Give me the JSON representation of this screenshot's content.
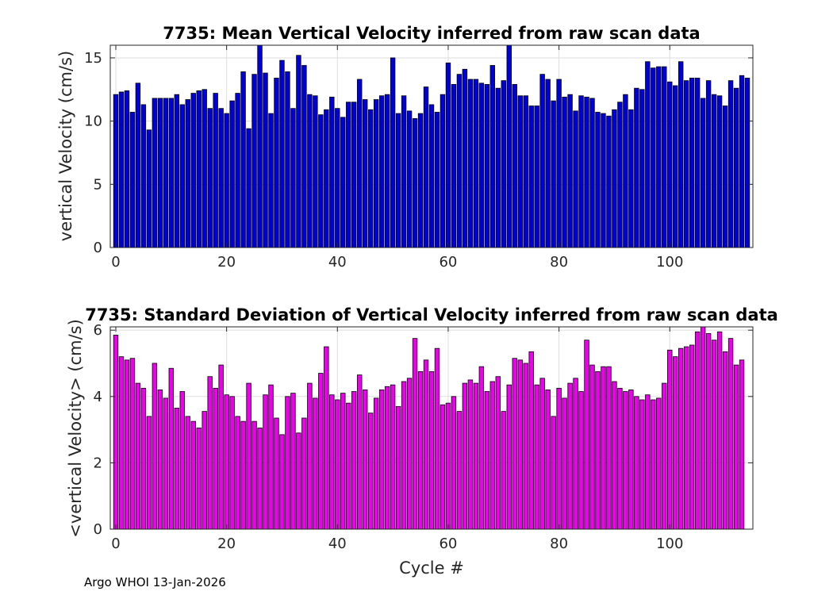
{
  "footer": "Argo WHOI 13-Jan-2026",
  "colors": {
    "mean_bar": "#0000dd",
    "std_bar": "#ee00ee",
    "bar_edge": "#000000",
    "grid": "#dddddd",
    "axis": "#262626"
  },
  "chart_data": [
    {
      "type": "bar",
      "title": "7735: Mean Vertical Velocity inferred from raw scan data",
      "xlabel": "",
      "ylabel": "vertical Velocity (cm/s)",
      "xlim": [
        -1,
        115
      ],
      "ylim": [
        0,
        16
      ],
      "xticks": [
        0,
        20,
        40,
        60,
        80,
        100
      ],
      "yticks": [
        0,
        5,
        10,
        15
      ],
      "grid": true,
      "x_start": 0,
      "values": [
        12.1,
        12.3,
        12.4,
        10.7,
        13.0,
        11.3,
        9.3,
        11.8,
        11.8,
        11.8,
        11.8,
        12.1,
        11.3,
        11.7,
        12.2,
        12.4,
        12.5,
        11.0,
        12.2,
        11.0,
        10.6,
        11.6,
        12.2,
        13.9,
        9.4,
        13.7,
        16.0,
        13.8,
        10.6,
        13.4,
        14.8,
        13.9,
        11.0,
        15.2,
        14.4,
        12.1,
        12.0,
        10.5,
        10.9,
        11.9,
        11.0,
        10.3,
        11.5,
        11.5,
        13.3,
        11.7,
        10.9,
        11.7,
        12.0,
        12.1,
        15.0,
        10.6,
        12.0,
        10.8,
        10.2,
        10.6,
        12.7,
        11.3,
        10.7,
        12.1,
        14.6,
        12.9,
        13.7,
        14.1,
        13.3,
        13.3,
        13.0,
        12.9,
        14.4,
        12.6,
        13.2,
        16.0,
        12.9,
        12.0,
        12.0,
        11.2,
        11.2,
        13.7,
        13.3,
        11.6,
        13.3,
        11.9,
        12.1,
        10.8,
        12.0,
        11.9,
        11.8,
        10.7,
        10.6,
        10.4,
        10.9,
        11.5,
        12.1,
        10.9,
        12.6,
        12.5,
        14.7,
        14.2,
        14.3,
        14.3,
        13.1,
        12.8,
        14.7,
        13.2,
        13.4,
        13.4,
        11.8,
        13.2,
        12.1,
        12.0,
        11.2,
        13.2,
        12.6,
        13.6,
        13.4
      ]
    },
    {
      "type": "bar",
      "title": "7735: Standard Deviation of Vertical Velocity inferred from raw scan data",
      "xlabel": "Cycle #",
      "ylabel": "<vertical Velocity> (cm/s)",
      "xlim": [
        -1,
        115
      ],
      "ylim": [
        0,
        6.1
      ],
      "xticks": [
        0,
        20,
        40,
        60,
        80,
        100
      ],
      "yticks": [
        0,
        2,
        4,
        6
      ],
      "grid": true,
      "x_start": 0,
      "values": [
        5.85,
        5.2,
        5.1,
        5.15,
        4.4,
        4.25,
        3.4,
        5.0,
        4.2,
        3.95,
        4.85,
        3.65,
        4.15,
        3.4,
        3.25,
        3.05,
        3.55,
        4.6,
        4.25,
        4.95,
        4.05,
        4.0,
        3.4,
        3.25,
        4.4,
        3.25,
        3.05,
        4.05,
        4.35,
        3.35,
        2.85,
        4.0,
        4.1,
        2.9,
        3.35,
        4.4,
        3.95,
        4.7,
        5.5,
        4.05,
        3.9,
        4.1,
        3.8,
        4.15,
        4.65,
        4.2,
        3.5,
        3.95,
        4.2,
        4.3,
        4.35,
        3.7,
        4.45,
        4.55,
        5.75,
        4.75,
        5.1,
        4.75,
        5.45,
        3.75,
        3.8,
        4.0,
        3.55,
        4.4,
        4.5,
        4.4,
        4.9,
        4.15,
        4.45,
        4.6,
        3.55,
        4.35,
        5.15,
        5.1,
        5.0,
        5.35,
        4.35,
        4.55,
        4.2,
        3.4,
        4.25,
        3.95,
        4.4,
        4.55,
        4.15,
        5.7,
        4.95,
        4.75,
        4.9,
        4.9,
        4.45,
        4.25,
        4.15,
        4.2,
        4.0,
        3.9,
        4.05,
        3.9,
        3.95,
        4.4,
        5.4,
        5.2,
        5.45,
        5.5,
        5.55,
        5.95,
        6.1,
        5.9,
        5.7,
        5.95,
        5.35,
        5.75,
        4.95,
        5.1
      ]
    }
  ]
}
